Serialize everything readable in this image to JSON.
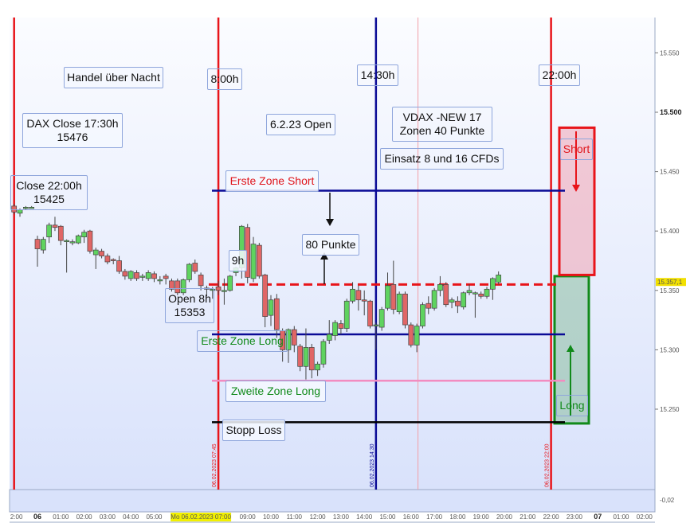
{
  "chart_data": {
    "type": "candlestick",
    "ylim": [
      15205,
      15580
    ],
    "y_ticks": [
      "15.550",
      "15.500",
      "15.450",
      "15.400",
      "15.350",
      "15.300",
      "15.250"
    ],
    "y_tick_values": [
      15550,
      15500,
      15450,
      15400,
      15350,
      15300,
      15250
    ],
    "x_ticks": [
      "2:00",
      "06",
      "01:00",
      "02:00",
      "03:00",
      "04:00",
      "05:00",
      "09:00",
      "10:00",
      "11:00",
      "12:00",
      "13:00",
      "14:00",
      "15:00",
      "16:00",
      "17:00",
      "18:00",
      "19:00",
      "20:00",
      "21:00",
      "22:00",
      "23:00",
      "07",
      "01:00",
      "02:00"
    ],
    "x_tick_hours": [
      -0.9,
      0,
      1,
      2,
      3,
      4,
      5,
      9,
      10,
      11,
      12,
      13,
      14,
      15,
      16,
      17,
      18,
      19,
      20,
      21,
      22,
      23,
      24,
      25,
      26
    ],
    "cursor_time_label": "Mo 06.02.2023 07:00",
    "cursor_hour": 7,
    "last_price_label": "15.357,1",
    "last_price": 15357.1,
    "indicator_label": "-0,02",
    "colors": {
      "up": "#5fd35f",
      "down": "#e06666",
      "dashed": "#e8141a",
      "zone": "#0a0a96",
      "pink": "#f28cc0",
      "stop": "#000000"
    },
    "candles": [
      [
        "23:00",
        15421,
        15423,
        15414,
        15416
      ],
      [
        "23:15",
        15415,
        15419,
        15412,
        15418
      ],
      [
        "23:30",
        15419,
        15421,
        15418,
        15420
      ],
      [
        "23:45",
        15420,
        15421,
        15419,
        15420
      ],
      [
        "00:00",
        15393,
        15396,
        15370,
        15385
      ],
      [
        "00:15",
        15384,
        15395,
        15381,
        15393
      ],
      [
        "00:30",
        15395,
        15407,
        15390,
        15405
      ],
      [
        "00:45",
        15405,
        15412,
        15400,
        15403
      ],
      [
        "01:00",
        15404,
        15405,
        15388,
        15392
      ],
      [
        "01:15",
        15392,
        15393,
        15365,
        15392
      ],
      [
        "01:30",
        15390,
        15393,
        15388,
        15391
      ],
      [
        "01:45",
        15390,
        15397,
        15389,
        15396
      ],
      [
        "02:00",
        15395,
        15401,
        15390,
        15399
      ],
      [
        "02:15",
        15400,
        15401,
        15381,
        15383
      ],
      [
        "02:30",
        15380,
        15386,
        15368,
        15384
      ],
      [
        "02:45",
        15383,
        15385,
        15377,
        15379
      ],
      [
        "03:00",
        15379,
        15381,
        15372,
        15374
      ],
      [
        "03:15",
        15376,
        15377,
        15372,
        15375
      ],
      [
        "03:30",
        15375,
        15379,
        15364,
        15366
      ],
      [
        "03:45",
        15366,
        15368,
        15359,
        15362
      ],
      [
        "04:00",
        15360,
        15367,
        15358,
        15366
      ],
      [
        "04:15",
        15365,
        15367,
        15358,
        15360
      ],
      [
        "04:30",
        15362,
        15364,
        15358,
        15362
      ],
      [
        "04:45",
        15360,
        15367,
        15358,
        15365
      ],
      [
        "05:00",
        15364,
        15366,
        15357,
        15360
      ],
      [
        "05:15",
        15359,
        15362,
        15355,
        15359
      ],
      [
        "05:30",
        15362,
        15364,
        15355,
        15360
      ],
      [
        "05:45",
        15358,
        15360,
        15349,
        15351
      ],
      [
        "06:00",
        15358,
        15360,
        15346,
        15348
      ],
      [
        "06:15",
        15348,
        15360,
        15346,
        15359
      ],
      [
        "06:30",
        15359,
        15373,
        15357,
        15372
      ],
      [
        "06:45",
        15373,
        15376,
        15364,
        15366
      ],
      [
        "07:00",
        15363,
        15365,
        15350,
        15354
      ],
      [
        "07:15",
        15352,
        15354,
        15345,
        15351
      ],
      [
        "07:30",
        15350,
        15353,
        15343,
        15351
      ],
      [
        "07:45",
        15353,
        15358,
        15346,
        15350
      ],
      [
        "08:00",
        15349,
        15360,
        15338,
        15350
      ],
      [
        "08:15",
        15350,
        15363,
        15349,
        15362
      ],
      [
        "08:30",
        15365,
        15370,
        15362,
        15369
      ],
      [
        "08:45",
        15369,
        15405,
        15360,
        15404
      ],
      [
        "09:00",
        15403,
        15406,
        15356,
        15361
      ],
      [
        "09:15",
        15360,
        15395,
        15357,
        15389
      ],
      [
        "09:30",
        15388,
        15390,
        15360,
        15362
      ],
      [
        "09:45",
        15363,
        15364,
        15319,
        15328
      ],
      [
        "10:00",
        15329,
        15346,
        15320,
        15342
      ],
      [
        "10:15",
        15343,
        15347,
        15310,
        15317
      ],
      [
        "10:30",
        15316,
        15318,
        15290,
        15300
      ],
      [
        "10:45",
        15300,
        15318,
        15289,
        15317
      ],
      [
        "11:00",
        15317,
        15320,
        15298,
        15304
      ],
      [
        "11:15",
        15303,
        15305,
        15282,
        15286
      ],
      [
        "11:30",
        15286,
        15318,
        15275,
        15302
      ],
      [
        "11:45",
        15302,
        15305,
        15276,
        15283
      ],
      [
        "12:00",
        15283,
        15290,
        15278,
        15288
      ],
      [
        "12:15",
        15288,
        15309,
        15285,
        15307
      ],
      [
        "12:30",
        15308,
        15325,
        15305,
        15313
      ],
      [
        "12:45",
        15312,
        15325,
        15308,
        15323
      ],
      [
        "13:00",
        15322,
        15325,
        15313,
        15318
      ],
      [
        "13:15",
        15318,
        15343,
        15315,
        15341
      ],
      [
        "13:30",
        15341,
        15357,
        15339,
        15351
      ],
      [
        "13:45",
        15350,
        15354,
        15333,
        15342
      ],
      [
        "14:00",
        15342,
        15350,
        15329,
        15341
      ],
      [
        "14:15",
        15341,
        15342,
        15318,
        15320
      ],
      [
        "14:30",
        15321,
        15323,
        15300,
        15321
      ],
      [
        "14:45",
        15319,
        15336,
        15316,
        15334
      ],
      [
        "15:00",
        15335,
        15365,
        15333,
        15354
      ],
      [
        "15:15",
        15355,
        15375,
        15330,
        15334
      ],
      [
        "15:30",
        15332,
        15349,
        15330,
        15347
      ],
      [
        "15:45",
        15347,
        15349,
        15318,
        15321
      ],
      [
        "16:00",
        15321,
        15323,
        15302,
        15304
      ],
      [
        "16:15",
        15304,
        15322,
        15298,
        15320
      ],
      [
        "16:30",
        15320,
        15340,
        15318,
        15338
      ],
      [
        "16:45",
        15339,
        15345,
        15330,
        15335
      ],
      [
        "17:00",
        15335,
        15352,
        15333,
        15350
      ],
      [
        "17:15",
        15350,
        15362,
        15345,
        15355
      ],
      [
        "17:30",
        15355,
        15357,
        15336,
        15338
      ],
      [
        "17:45",
        15340,
        15344,
        15335,
        15342
      ],
      [
        "18:00",
        15341,
        15345,
        15331,
        15337
      ],
      [
        "18:15",
        15336,
        15349,
        15334,
        15348
      ],
      [
        "18:30",
        15348,
        15355,
        15346,
        15350
      ],
      [
        "18:45",
        15348,
        15349,
        15327,
        15348
      ],
      [
        "19:00",
        15347,
        15349,
        15343,
        15345
      ],
      [
        "19:15",
        15345,
        15353,
        15343,
        15351
      ],
      [
        "19:30",
        15351,
        15361,
        15342,
        15360
      ],
      [
        "19:45",
        15357,
        15366,
        15355,
        15363
      ]
    ],
    "levels": [
      {
        "price": 15434,
        "color": "#0a0a96",
        "style": "solid"
      },
      {
        "price": 15355,
        "color": "#e8141a",
        "style": "dashed"
      },
      {
        "price": 15313,
        "color": "#0a0a96",
        "style": "solid"
      },
      {
        "price": 15274,
        "color": "#f28cc0",
        "style": "solid"
      },
      {
        "price": 15239,
        "color": "#000000",
        "style": "solid"
      }
    ],
    "vertical_lines": [
      {
        "hour": -1.0,
        "color": "#e8141a",
        "label": ""
      },
      {
        "hour": 7.75,
        "color": "#e8141a",
        "label": "06.02.2023 07:45"
      },
      {
        "hour": 14.5,
        "color": "#0a0a96",
        "label": "06.02.2023 14:30"
      },
      {
        "hour": 16.3,
        "color": "#f2a0a8",
        "label": ""
      },
      {
        "hour": 22.0,
        "color": "#e8141a",
        "label": "06.02.2023 22:00"
      }
    ],
    "short_box": {
      "top": 15487,
      "bottom": 15363,
      "color": "#e8141a"
    },
    "long_box": {
      "top": 15362,
      "bottom": 15238,
      "color": "#118a1a"
    }
  },
  "notes": {
    "handel": "Handel über Nacht",
    "h800": "8:00h",
    "dax_close_1": "DAX Close 17:30h",
    "dax_close_2": "15476",
    "open_623": "6.2.23 Open",
    "close22_1": "Close 22:00h",
    "close22_2": "15425",
    "erste_short": "Erste Zone Short",
    "h1430": "14:30h",
    "vdax_1": "VDAX -NEW 17",
    "vdax_2": "Zonen 40  Punkte",
    "einsatz": "Einsatz 8 und 16 CFDs",
    "h2200": "22:00h",
    "punkte80": "80 Punkte",
    "h9": "9h",
    "open8_1": "Open 8h",
    "open8_2": "15353",
    "erste_long": "Erste Zone Long",
    "zweite_long": "Zweite Zone Long",
    "stopp": "Stopp Loss",
    "short": "Short",
    "long": "Long"
  }
}
